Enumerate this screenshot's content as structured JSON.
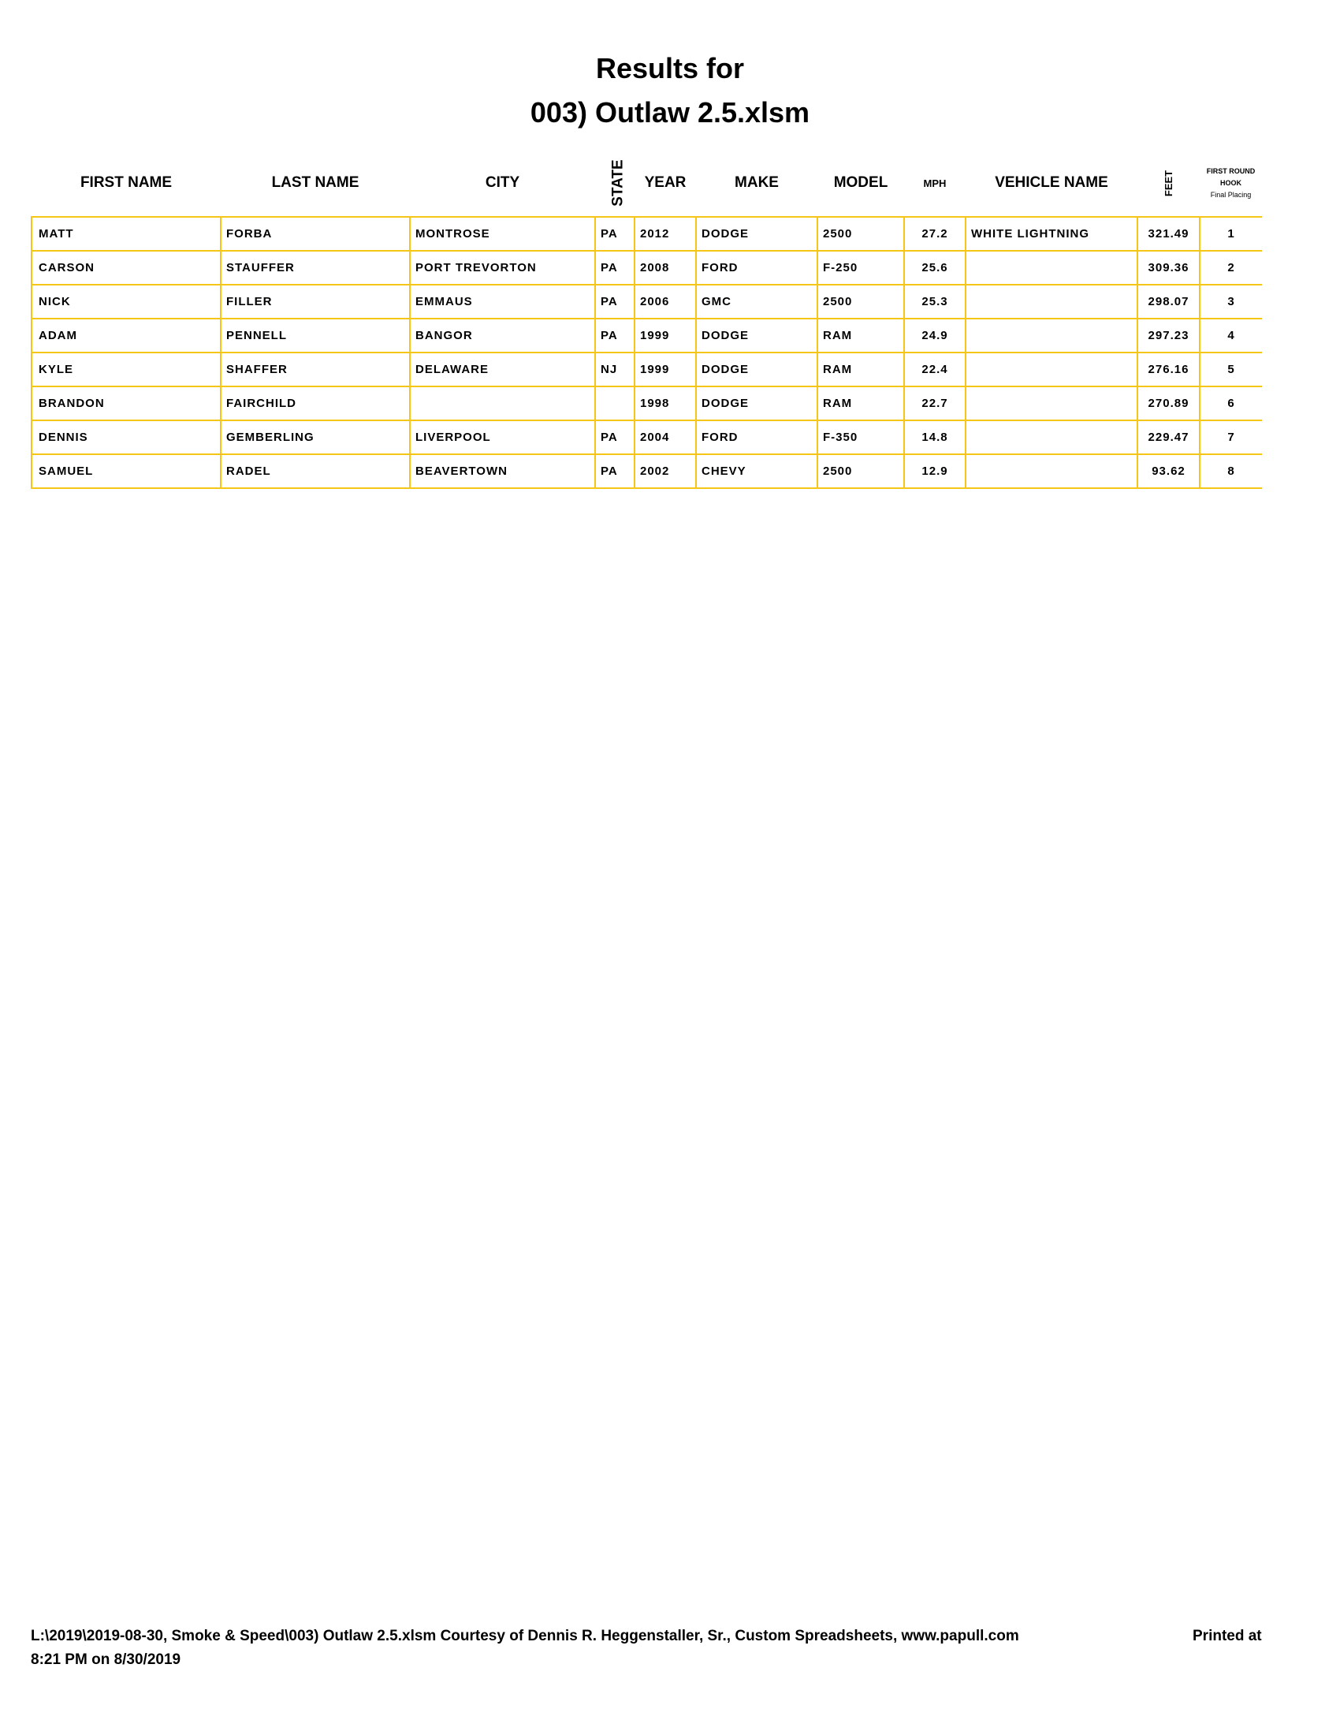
{
  "title": {
    "line1": "Results for",
    "line2": "003) Outlaw 2.5.xlsm"
  },
  "columns": {
    "first_name": "FIRST NAME",
    "last_name": "LAST NAME",
    "city": "CITY",
    "state": "STATE",
    "year": "YEAR",
    "make": "MAKE",
    "model": "MODEL",
    "mph": "MPH",
    "vehicle_name": "VEHICLE NAME",
    "feet": "FEET",
    "placing_l1": "FIRST ROUND",
    "placing_l2": "HOOK",
    "placing_l3": "Final Placing"
  },
  "rows": [
    {
      "first": "MATT",
      "last": "FORBA",
      "city": "MONTROSE",
      "state": "PA",
      "year": "2012",
      "make": "DODGE",
      "model": "2500",
      "mph": "27.2",
      "vehicle": "WHITE LIGHTNING",
      "feet": "321.49",
      "place": "1"
    },
    {
      "first": "CARSON",
      "last": "STAUFFER",
      "city": "PORT TREVORTON",
      "state": "PA",
      "year": "2008",
      "make": "FORD",
      "model": "F-250",
      "mph": "25.6",
      "vehicle": "",
      "feet": "309.36",
      "place": "2"
    },
    {
      "first": "NICK",
      "last": "FILLER",
      "city": "EMMAUS",
      "state": "PA",
      "year": "2006",
      "make": "GMC",
      "model": "2500",
      "mph": "25.3",
      "vehicle": "",
      "feet": "298.07",
      "place": "3"
    },
    {
      "first": "ADAM",
      "last": "PENNELL",
      "city": "BANGOR",
      "state": "PA",
      "year": "1999",
      "make": "DODGE",
      "model": "RAM",
      "mph": "24.9",
      "vehicle": "",
      "feet": "297.23",
      "place": "4"
    },
    {
      "first": "KYLE",
      "last": "SHAFFER",
      "city": "DELAWARE",
      "state": "NJ",
      "year": "1999",
      "make": "DODGE",
      "model": "RAM",
      "mph": "22.4",
      "vehicle": "",
      "feet": "276.16",
      "place": "5"
    },
    {
      "first": "BRANDON",
      "last": "FAIRCHILD",
      "city": "",
      "state": "",
      "year": "1998",
      "make": "DODGE",
      "model": "RAM",
      "mph": "22.7",
      "vehicle": "",
      "feet": "270.89",
      "place": "6"
    },
    {
      "first": "DENNIS",
      "last": "GEMBERLING",
      "city": "LIVERPOOL",
      "state": "PA",
      "year": "2004",
      "make": "FORD",
      "model": "F-350",
      "mph": "14.8",
      "vehicle": "",
      "feet": "229.47",
      "place": "7"
    },
    {
      "first": "SAMUEL",
      "last": "RADEL",
      "city": "BEAVERTOWN",
      "state": "PA",
      "year": "2002",
      "make": "CHEVY",
      "model": "2500",
      "mph": "12.9",
      "vehicle": "",
      "feet": "93.62",
      "place": "8"
    }
  ],
  "footer": {
    "path_credit": "L:\\2019\\2019-08-30, Smoke & Speed\\003) Outlaw 2.5.xlsm  Courtesy of Dennis R. Heggenstaller, Sr., Custom Spreadsheets, www.papull.com",
    "printed_at": "Printed at",
    "printed_time": "8:21 PM on 8/30/2019"
  },
  "colors": {
    "grid": "#f5c518"
  }
}
